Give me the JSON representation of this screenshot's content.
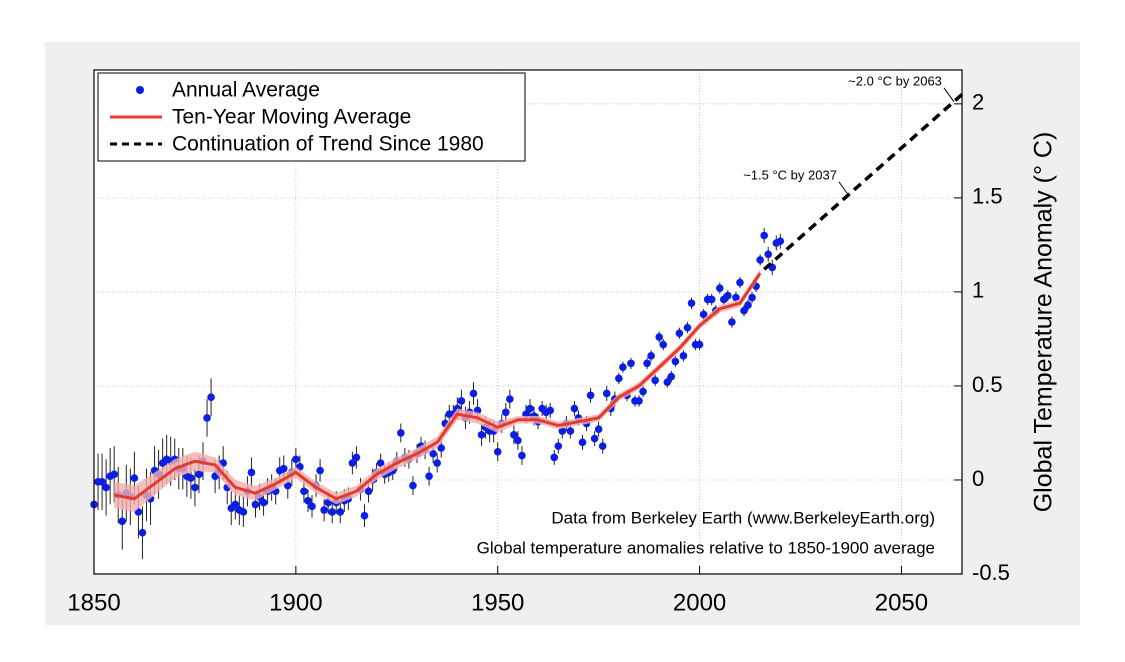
{
  "chart_data": {
    "type": "line",
    "y_label": "Global Temperature Anomaly (° C)",
    "notes": [
      "Data from Berkeley Earth (www.BerkeleyEarth.org)",
      "Global temperature anomalies relative to 1850-1900 average"
    ],
    "annotations": [
      {
        "text": "~1.5 °C by 2037",
        "x": 2037,
        "y": 1.5
      },
      {
        "text": "~2.0 °C by 2063",
        "x": 2063,
        "y": 2
      }
    ],
    "xlim": [
      1850,
      2065
    ],
    "xticks": [
      1850,
      1900,
      1950,
      2000,
      2050
    ],
    "ylim": [
      -0.5,
      2.18
    ],
    "yticks": [
      -0.5,
      0,
      0.5,
      1,
      1.5,
      2
    ],
    "grid": true,
    "legend": "upper left",
    "series": [
      {
        "name": "Annual Average",
        "mode": "markers",
        "color": "#0a1ee6",
        "x": [
          1850,
          1851,
          1852,
          1853,
          1854,
          1855,
          1856,
          1857,
          1858,
          1859,
          1860,
          1861,
          1862,
          1863,
          1864,
          1865,
          1866,
          1867,
          1868,
          1869,
          1870,
          1871,
          1872,
          1873,
          1874,
          1875,
          1876,
          1877,
          1878,
          1879,
          1880,
          1881,
          1882,
          1883,
          1884,
          1885,
          1886,
          1887,
          1888,
          1889,
          1890,
          1891,
          1892,
          1893,
          1894,
          1895,
          1896,
          1897,
          1898,
          1899,
          1900,
          1901,
          1902,
          1903,
          1904,
          1905,
          1906,
          1907,
          1908,
          1909,
          1910,
          1911,
          1912,
          1913,
          1914,
          1915,
          1916,
          1917,
          1918,
          1919,
          1920,
          1921,
          1922,
          1923,
          1924,
          1925,
          1926,
          1927,
          1928,
          1929,
          1930,
          1931,
          1932,
          1933,
          1934,
          1935,
          1936,
          1937,
          1938,
          1939,
          1940,
          1941,
          1942,
          1943,
          1944,
          1945,
          1946,
          1947,
          1948,
          1949,
          1950,
          1951,
          1952,
          1953,
          1954,
          1955,
          1956,
          1957,
          1958,
          1959,
          1960,
          1961,
          1962,
          1963,
          1964,
          1965,
          1966,
          1967,
          1968,
          1969,
          1970,
          1971,
          1972,
          1973,
          1974,
          1975,
          1976,
          1977,
          1978,
          1979,
          1980,
          1981,
          1982,
          1983,
          1984,
          1985,
          1986,
          1987,
          1988,
          1989,
          1990,
          1991,
          1992,
          1993,
          1994,
          1995,
          1996,
          1997,
          1998,
          1999,
          2000,
          2001,
          2002,
          2003,
          2004,
          2005,
          2006,
          2007,
          2008,
          2009,
          2010,
          2011,
          2012,
          2013,
          2014,
          2015,
          2016,
          2017,
          2018,
          2019,
          2020
        ],
        "values": [
          -0.13,
          -0.01,
          -0.01,
          -0.04,
          0.02,
          0.03,
          -0.08,
          -0.22,
          -0.07,
          -0.09,
          0.01,
          -0.17,
          -0.28,
          -0.08,
          -0.1,
          0.05,
          0.03,
          0.09,
          0.11,
          0.1,
          0.11,
          0.06,
          0.06,
          0.02,
          0.01,
          -0.04,
          0.03,
          0.1,
          0.33,
          0.44,
          0.02,
          0.04,
          0.09,
          -0.04,
          -0.15,
          -0.13,
          -0.16,
          -0.17,
          -0.06,
          0.04,
          -0.13,
          -0.09,
          -0.12,
          -0.06,
          -0.04,
          -0.06,
          0.05,
          0.06,
          -0.03,
          0.04,
          0.11,
          0.07,
          -0.06,
          -0.11,
          -0.14,
          -0.03,
          0.05,
          -0.16,
          -0.12,
          -0.17,
          -0.12,
          -0.17,
          -0.11,
          -0.1,
          0.09,
          0.12,
          -0.05,
          -0.19,
          -0.06,
          0.0,
          0.04,
          0.09,
          0.03,
          0.04,
          0.05,
          0.1,
          0.25,
          0.12,
          0.11,
          -0.03,
          0.14,
          0.18,
          0.16,
          0.02,
          0.14,
          0.09,
          0.17,
          0.3,
          0.35,
          0.35,
          0.38,
          0.42,
          0.33,
          0.36,
          0.46,
          0.37,
          0.24,
          0.28,
          0.26,
          0.26,
          0.15,
          0.3,
          0.36,
          0.43,
          0.24,
          0.21,
          0.13,
          0.35,
          0.38,
          0.34,
          0.31,
          0.38,
          0.36,
          0.37,
          0.12,
          0.18,
          0.26,
          0.3,
          0.26,
          0.38,
          0.33,
          0.2,
          0.3,
          0.45,
          0.22,
          0.27,
          0.18,
          0.46,
          0.38,
          0.43,
          0.54,
          0.6,
          0.45,
          0.62,
          0.42,
          0.42,
          0.47,
          0.62,
          0.66,
          0.53,
          0.76,
          0.72,
          0.52,
          0.55,
          0.63,
          0.78,
          0.66,
          0.81,
          0.94,
          0.72,
          0.72,
          0.88,
          0.96,
          0.96,
          0.9,
          1.02,
          0.96,
          0.98,
          0.84,
          0.97,
          1.05,
          0.9,
          0.93,
          0.97,
          1.03,
          1.17,
          1.3,
          1.2,
          1.13,
          1.26,
          1.27
        ],
        "errors": [
          0.15,
          0.15,
          0.15,
          0.15,
          0.15,
          0.15,
          0.15,
          0.15,
          0.15,
          0.15,
          0.14,
          0.14,
          0.14,
          0.14,
          0.14,
          0.13,
          0.13,
          0.13,
          0.13,
          0.13,
          0.11,
          0.11,
          0.11,
          0.11,
          0.11,
          0.1,
          0.1,
          0.1,
          0.1,
          0.1,
          0.09,
          0.09,
          0.09,
          0.09,
          0.09,
          0.08,
          0.08,
          0.08,
          0.08,
          0.08,
          0.07,
          0.07,
          0.07,
          0.07,
          0.07,
          0.07,
          0.07,
          0.07,
          0.07,
          0.07,
          0.06,
          0.06,
          0.06,
          0.06,
          0.06,
          0.06,
          0.06,
          0.06,
          0.06,
          0.06,
          0.06,
          0.06,
          0.06,
          0.06,
          0.06,
          0.06,
          0.06,
          0.06,
          0.06,
          0.06,
          0.05,
          0.05,
          0.05,
          0.05,
          0.05,
          0.05,
          0.05,
          0.05,
          0.05,
          0.05,
          0.05,
          0.05,
          0.05,
          0.05,
          0.05,
          0.05,
          0.05,
          0.05,
          0.05,
          0.05,
          0.06,
          0.06,
          0.06,
          0.06,
          0.06,
          0.06,
          0.06,
          0.06,
          0.06,
          0.06,
          0.05,
          0.05,
          0.05,
          0.05,
          0.05,
          0.05,
          0.05,
          0.05,
          0.05,
          0.05,
          0.04,
          0.04,
          0.04,
          0.04,
          0.04,
          0.04,
          0.04,
          0.04,
          0.04,
          0.04,
          0.04,
          0.04,
          0.04,
          0.04,
          0.04,
          0.04,
          0.04,
          0.04,
          0.04,
          0.04,
          0.03,
          0.03,
          0.03,
          0.03,
          0.03,
          0.03,
          0.03,
          0.03,
          0.03,
          0.03,
          0.03,
          0.03,
          0.03,
          0.03,
          0.03,
          0.03,
          0.03,
          0.03,
          0.03,
          0.03,
          0.03,
          0.03,
          0.03,
          0.03,
          0.03,
          0.03,
          0.03,
          0.03,
          0.03,
          0.03,
          0.03,
          0.03,
          0.03,
          0.03,
          0.03,
          0.03,
          0.04,
          0.04,
          0.04,
          0.04,
          0.04
        ]
      },
      {
        "name": "Ten-Year Moving Average",
        "mode": "line",
        "color": "#e33b2e",
        "band_color": "#f2aeae",
        "x": [
          1855,
          1860,
          1865,
          1870,
          1875,
          1880,
          1885,
          1890,
          1895,
          1900,
          1905,
          1910,
          1915,
          1920,
          1925,
          1930,
          1935,
          1940,
          1945,
          1950,
          1955,
          1960,
          1965,
          1970,
          1975,
          1980,
          1985,
          1990,
          1995,
          2000,
          2005,
          2010,
          2015
        ],
        "values": [
          -0.08,
          -0.1,
          -0.02,
          0.06,
          0.1,
          0.08,
          -0.04,
          -0.07,
          -0.02,
          0.04,
          -0.04,
          -0.1,
          -0.06,
          0.03,
          0.09,
          0.14,
          0.2,
          0.35,
          0.33,
          0.28,
          0.32,
          0.32,
          0.29,
          0.31,
          0.33,
          0.44,
          0.5,
          0.6,
          0.7,
          0.82,
          0.91,
          0.94,
          1.1
        ],
        "uncertainty": [
          0.07,
          0.07,
          0.06,
          0.05,
          0.05,
          0.04,
          0.04,
          0.04,
          0.03,
          0.03,
          0.03,
          0.03,
          0.03,
          0.03,
          0.03,
          0.03,
          0.03,
          0.03,
          0.03,
          0.03,
          0.02,
          0.02,
          0.02,
          0.02,
          0.02,
          0.02,
          0.02,
          0.02,
          0.02,
          0.02,
          0.02,
          0.02,
          0.02
        ]
      },
      {
        "name": "Continuation of Trend Since 1980",
        "mode": "dashed",
        "color": "#000000",
        "x": [
          2016,
          2065
        ],
        "values": [
          1.12,
          2.05
        ]
      }
    ]
  }
}
